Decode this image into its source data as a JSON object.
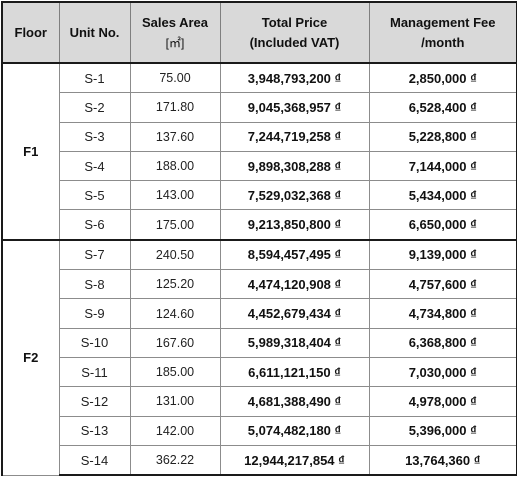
{
  "table": {
    "headers": {
      "floor": "Floor",
      "unit": "Unit No.",
      "area_line1": "Sales Area",
      "area_line2": "[㎡]",
      "price_line1": "Total Price",
      "price_line2": "(Included VAT)",
      "fee_line1": "Management Fee",
      "fee_line2": "/month"
    },
    "groups": [
      {
        "floor": "F1",
        "rows": [
          {
            "unit": "S-1",
            "area": "75.00",
            "price": "3,948,793,200 ₫",
            "fee": "2,850,000 ₫"
          },
          {
            "unit": "S-2",
            "area": "171.80",
            "price": "9,045,368,957 ₫",
            "fee": "6,528,400 ₫"
          },
          {
            "unit": "S-3",
            "area": "137.60",
            "price": "7,244,719,258 ₫",
            "fee": "5,228,800 ₫"
          },
          {
            "unit": "S-4",
            "area": "188.00",
            "price": "9,898,308,288 ₫",
            "fee": "7,144,000 ₫"
          },
          {
            "unit": "S-5",
            "area": "143.00",
            "price": "7,529,032,368 ₫",
            "fee": "5,434,000 ₫"
          },
          {
            "unit": "S-6",
            "area": "175.00",
            "price": "9,213,850,800 ₫",
            "fee": "6,650,000 ₫"
          }
        ]
      },
      {
        "floor": "F2",
        "rows": [
          {
            "unit": "S-7",
            "area": "240.50",
            "price": "8,594,457,495 ₫",
            "fee": "9,139,000 ₫"
          },
          {
            "unit": "S-8",
            "area": "125.20",
            "price": "4,474,120,908 ₫",
            "fee": "4,757,600 ₫"
          },
          {
            "unit": "S-9",
            "area": "124.60",
            "price": "4,452,679,434 ₫",
            "fee": "4,734,800 ₫"
          },
          {
            "unit": "S-10",
            "area": "167.60",
            "price": "5,989,318,404 ₫",
            "fee": "6,368,800 ₫"
          },
          {
            "unit": "S-11",
            "area": "185.00",
            "price": "6,611,121,150 ₫",
            "fee": "7,030,000 ₫"
          },
          {
            "unit": "S-12",
            "area": "131.00",
            "price": "4,681,388,490 ₫",
            "fee": "4,978,000 ₫"
          },
          {
            "unit": "S-13",
            "area": "142.00",
            "price": "5,074,482,180 ₫",
            "fee": "5,396,000 ₫"
          },
          {
            "unit": "S-14",
            "area": "362.22",
            "price": "12,944,217,854 ₫",
            "fee": "13,764,360 ₫"
          }
        ]
      }
    ]
  }
}
